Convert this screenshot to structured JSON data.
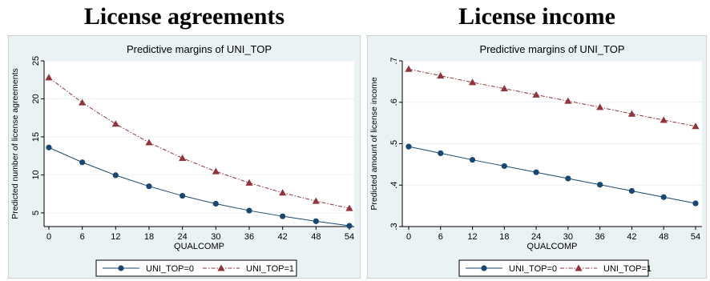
{
  "titles": {
    "left": "License agreements",
    "right": "License income"
  },
  "colors": {
    "series0": "#1a476f",
    "series1": "#90353b",
    "panel_bg": "#eaf2f3",
    "plot_bg": "#ffffff",
    "grid": "#eaf2f3"
  },
  "chart_data": [
    {
      "type": "line",
      "title": "Predictive margins of UNI_TOP",
      "xlabel": "QUALCOMP",
      "ylabel": "Predicted number of license agreements",
      "x": [
        0,
        6,
        12,
        18,
        24,
        30,
        36,
        42,
        48,
        54
      ],
      "xticks": [
        0,
        6,
        12,
        18,
        24,
        30,
        36,
        42,
        48,
        54
      ],
      "xlim": [
        0,
        54
      ],
      "yticks": [
        5,
        10,
        15,
        20,
        25
      ],
      "ylim": [
        3.2,
        25
      ],
      "grid": true,
      "legend": "bottom",
      "series": [
        {
          "name": "UNI_TOP=0",
          "marker": "circle",
          "line": "solid",
          "values": [
            13.6,
            11.65,
            9.95,
            8.5,
            7.25,
            6.2,
            5.3,
            4.55,
            3.9,
            3.3
          ]
        },
        {
          "name": "UNI_TOP=1",
          "marker": "triangle",
          "line": "dash-dot",
          "values": [
            22.8,
            19.5,
            16.7,
            14.25,
            12.2,
            10.45,
            8.95,
            7.65,
            6.55,
            5.6
          ]
        }
      ]
    },
    {
      "type": "line",
      "title": "Predictive margins of UNI_TOP",
      "xlabel": "QUALCOMP",
      "ylabel": "Predicted amount of license income",
      "x": [
        0,
        6,
        12,
        18,
        24,
        30,
        36,
        42,
        48,
        54
      ],
      "xticks": [
        0,
        6,
        12,
        18,
        24,
        30,
        36,
        42,
        48,
        54
      ],
      "xlim": [
        0,
        54
      ],
      "yticks": [
        ".3",
        ".4",
        ".5",
        ".6",
        ".7"
      ],
      "ytick_values": [
        0.3,
        0.4,
        0.5,
        0.6,
        0.7
      ],
      "ylim": [
        0.3,
        0.7
      ],
      "grid": true,
      "legend": "bottom",
      "series": [
        {
          "name": "UNI_TOP=0",
          "marker": "circle",
          "line": "solid",
          "values": [
            0.493,
            0.477,
            0.461,
            0.446,
            0.431,
            0.416,
            0.401,
            0.386,
            0.371,
            0.356
          ]
        },
        {
          "name": "UNI_TOP=1",
          "marker": "triangle",
          "line": "dash-dot",
          "values": [
            0.68,
            0.664,
            0.648,
            0.633,
            0.618,
            0.603,
            0.588,
            0.572,
            0.557,
            0.542
          ]
        }
      ]
    }
  ]
}
